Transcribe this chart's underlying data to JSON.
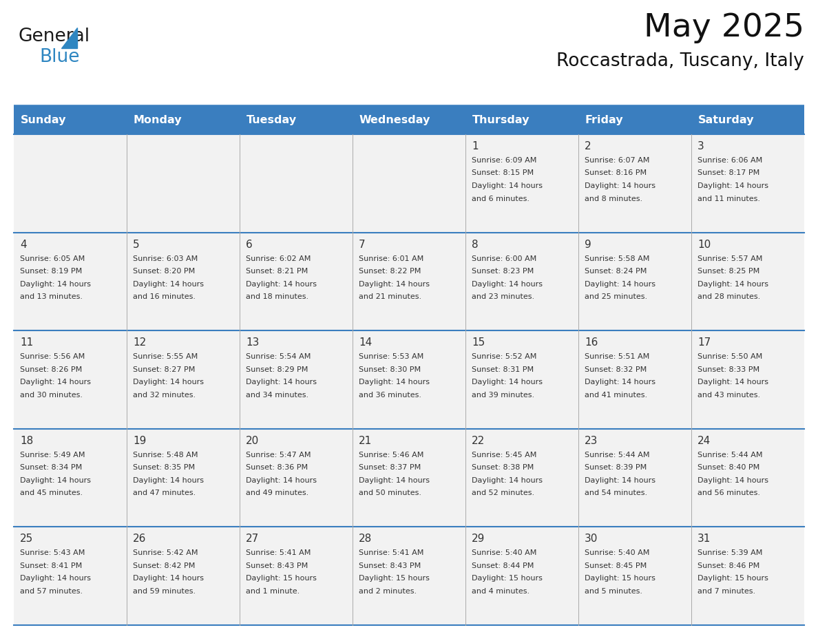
{
  "title": "May 2025",
  "subtitle": "Roccastrada, Tuscany, Italy",
  "days_of_week": [
    "Sunday",
    "Monday",
    "Tuesday",
    "Wednesday",
    "Thursday",
    "Friday",
    "Saturday"
  ],
  "header_bg": "#3a7ebf",
  "header_text": "#ffffff",
  "cell_bg": "#f2f2f2",
  "cell_text_color": "#333333",
  "day_num_color": "#333333",
  "border_color": "#3a7ebf",
  "grid_line_color": "#5a9fd4",
  "logo_triangle_color": "#2e86c1",
  "calendar": [
    [
      null,
      null,
      null,
      null,
      {
        "day": 1,
        "sunrise": "6:09 AM",
        "sunset": "8:15 PM",
        "daylight_line1": "Daylight: 14 hours",
        "daylight_line2": "and 6 minutes."
      },
      {
        "day": 2,
        "sunrise": "6:07 AM",
        "sunset": "8:16 PM",
        "daylight_line1": "Daylight: 14 hours",
        "daylight_line2": "and 8 minutes."
      },
      {
        "day": 3,
        "sunrise": "6:06 AM",
        "sunset": "8:17 PM",
        "daylight_line1": "Daylight: 14 hours",
        "daylight_line2": "and 11 minutes."
      }
    ],
    [
      {
        "day": 4,
        "sunrise": "6:05 AM",
        "sunset": "8:19 PM",
        "daylight_line1": "Daylight: 14 hours",
        "daylight_line2": "and 13 minutes."
      },
      {
        "day": 5,
        "sunrise": "6:03 AM",
        "sunset": "8:20 PM",
        "daylight_line1": "Daylight: 14 hours",
        "daylight_line2": "and 16 minutes."
      },
      {
        "day": 6,
        "sunrise": "6:02 AM",
        "sunset": "8:21 PM",
        "daylight_line1": "Daylight: 14 hours",
        "daylight_line2": "and 18 minutes."
      },
      {
        "day": 7,
        "sunrise": "6:01 AM",
        "sunset": "8:22 PM",
        "daylight_line1": "Daylight: 14 hours",
        "daylight_line2": "and 21 minutes."
      },
      {
        "day": 8,
        "sunrise": "6:00 AM",
        "sunset": "8:23 PM",
        "daylight_line1": "Daylight: 14 hours",
        "daylight_line2": "and 23 minutes."
      },
      {
        "day": 9,
        "sunrise": "5:58 AM",
        "sunset": "8:24 PM",
        "daylight_line1": "Daylight: 14 hours",
        "daylight_line2": "and 25 minutes."
      },
      {
        "day": 10,
        "sunrise": "5:57 AM",
        "sunset": "8:25 PM",
        "daylight_line1": "Daylight: 14 hours",
        "daylight_line2": "and 28 minutes."
      }
    ],
    [
      {
        "day": 11,
        "sunrise": "5:56 AM",
        "sunset": "8:26 PM",
        "daylight_line1": "Daylight: 14 hours",
        "daylight_line2": "and 30 minutes."
      },
      {
        "day": 12,
        "sunrise": "5:55 AM",
        "sunset": "8:27 PM",
        "daylight_line1": "Daylight: 14 hours",
        "daylight_line2": "and 32 minutes."
      },
      {
        "day": 13,
        "sunrise": "5:54 AM",
        "sunset": "8:29 PM",
        "daylight_line1": "Daylight: 14 hours",
        "daylight_line2": "and 34 minutes."
      },
      {
        "day": 14,
        "sunrise": "5:53 AM",
        "sunset": "8:30 PM",
        "daylight_line1": "Daylight: 14 hours",
        "daylight_line2": "and 36 minutes."
      },
      {
        "day": 15,
        "sunrise": "5:52 AM",
        "sunset": "8:31 PM",
        "daylight_line1": "Daylight: 14 hours",
        "daylight_line2": "and 39 minutes."
      },
      {
        "day": 16,
        "sunrise": "5:51 AM",
        "sunset": "8:32 PM",
        "daylight_line1": "Daylight: 14 hours",
        "daylight_line2": "and 41 minutes."
      },
      {
        "day": 17,
        "sunrise": "5:50 AM",
        "sunset": "8:33 PM",
        "daylight_line1": "Daylight: 14 hours",
        "daylight_line2": "and 43 minutes."
      }
    ],
    [
      {
        "day": 18,
        "sunrise": "5:49 AM",
        "sunset": "8:34 PM",
        "daylight_line1": "Daylight: 14 hours",
        "daylight_line2": "and 45 minutes."
      },
      {
        "day": 19,
        "sunrise": "5:48 AM",
        "sunset": "8:35 PM",
        "daylight_line1": "Daylight: 14 hours",
        "daylight_line2": "and 47 minutes."
      },
      {
        "day": 20,
        "sunrise": "5:47 AM",
        "sunset": "8:36 PM",
        "daylight_line1": "Daylight: 14 hours",
        "daylight_line2": "and 49 minutes."
      },
      {
        "day": 21,
        "sunrise": "5:46 AM",
        "sunset": "8:37 PM",
        "daylight_line1": "Daylight: 14 hours",
        "daylight_line2": "and 50 minutes."
      },
      {
        "day": 22,
        "sunrise": "5:45 AM",
        "sunset": "8:38 PM",
        "daylight_line1": "Daylight: 14 hours",
        "daylight_line2": "and 52 minutes."
      },
      {
        "day": 23,
        "sunrise": "5:44 AM",
        "sunset": "8:39 PM",
        "daylight_line1": "Daylight: 14 hours",
        "daylight_line2": "and 54 minutes."
      },
      {
        "day": 24,
        "sunrise": "5:44 AM",
        "sunset": "8:40 PM",
        "daylight_line1": "Daylight: 14 hours",
        "daylight_line2": "and 56 minutes."
      }
    ],
    [
      {
        "day": 25,
        "sunrise": "5:43 AM",
        "sunset": "8:41 PM",
        "daylight_line1": "Daylight: 14 hours",
        "daylight_line2": "and 57 minutes."
      },
      {
        "day": 26,
        "sunrise": "5:42 AM",
        "sunset": "8:42 PM",
        "daylight_line1": "Daylight: 14 hours",
        "daylight_line2": "and 59 minutes."
      },
      {
        "day": 27,
        "sunrise": "5:41 AM",
        "sunset": "8:43 PM",
        "daylight_line1": "Daylight: 15 hours",
        "daylight_line2": "and 1 minute."
      },
      {
        "day": 28,
        "sunrise": "5:41 AM",
        "sunset": "8:43 PM",
        "daylight_line1": "Daylight: 15 hours",
        "daylight_line2": "and 2 minutes."
      },
      {
        "day": 29,
        "sunrise": "5:40 AM",
        "sunset": "8:44 PM",
        "daylight_line1": "Daylight: 15 hours",
        "daylight_line2": "and 4 minutes."
      },
      {
        "day": 30,
        "sunrise": "5:40 AM",
        "sunset": "8:45 PM",
        "daylight_line1": "Daylight: 15 hours",
        "daylight_line2": "and 5 minutes."
      },
      {
        "day": 31,
        "sunrise": "5:39 AM",
        "sunset": "8:46 PM",
        "daylight_line1": "Daylight: 15 hours",
        "daylight_line2": "and 7 minutes."
      }
    ]
  ]
}
